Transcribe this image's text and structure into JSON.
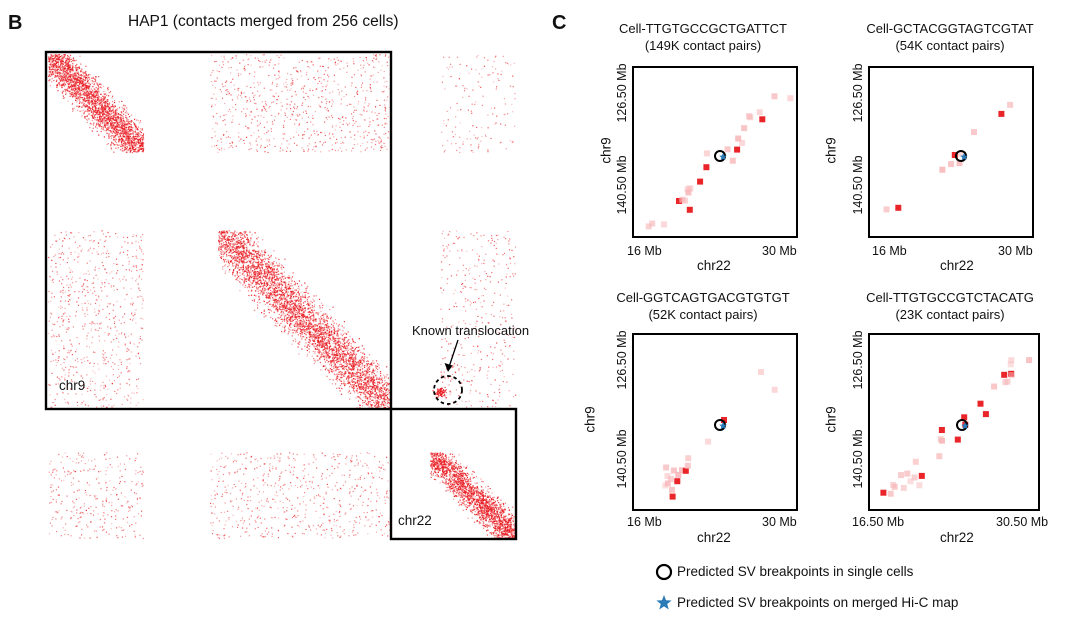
{
  "panel_b": {
    "letter": "B",
    "title": "HAP1 (contacts merged from 256 cells)",
    "chr9_label": "chr9",
    "chr22_label": "chr22",
    "annotation": "Known translocation"
  },
  "panel_c": {
    "letter": "C",
    "cells": [
      {
        "name": "Cell-TTGTGCCGCTGATTCT",
        "pairs": "(149K contact pairs)",
        "y_ticks": [
          "126.50 Mb",
          "140.50 Mb"
        ],
        "x_ticks": [
          "16 Mb",
          "30 Mb"
        ],
        "ylabel": "chr9",
        "xlabel": "chr22"
      },
      {
        "name": "Cell-GCTACGGTAGTCGTAT",
        "pairs": "(54K contact pairs)",
        "y_ticks": [
          "126.50 Mb",
          "140.50 Mb"
        ],
        "x_ticks": [
          "16 Mb",
          "30 Mb"
        ],
        "ylabel": "chr9",
        "xlabel": "chr22"
      },
      {
        "name": "Cell-GGTCAGTGACGTGTGT",
        "pairs": "(52K contact pairs)",
        "y_ticks": [
          "126.50 Mb",
          "140.50 Mb"
        ],
        "x_ticks": [
          "16 Mb",
          "30 Mb"
        ],
        "ylabel": "chr9",
        "xlabel": "chr22"
      },
      {
        "name": "Cell-TTGTGCCGTCTACATG",
        "pairs": "(23K contact pairs)",
        "y_ticks": [
          "126.50 Mb",
          "140.50 Mb"
        ],
        "x_ticks": [
          "16.50 Mb",
          "30.50 Mb"
        ],
        "ylabel": "chr9",
        "xlabel": "chr22"
      }
    ]
  },
  "legend": {
    "single_cells": "Predicted SV breakpoints in single cells",
    "merged": "Predicted SV breakpoints on merged Hi-C map"
  },
  "colors": {
    "contact": "#e8191f",
    "contact_light": "#f7b7b9",
    "marker_star": "#2a7ab8",
    "frame": "#000000"
  }
}
